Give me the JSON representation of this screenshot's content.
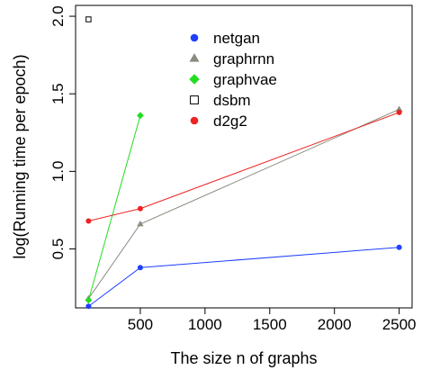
{
  "chart_data": {
    "type": "line",
    "title": "",
    "xlabel": "The size n of graphs",
    "ylabel": "log(Running time per epoch)",
    "xlim": [
      0,
      2600
    ],
    "ylim": [
      0.12,
      2.07
    ],
    "x_ticks": [
      500,
      1000,
      1500,
      2000,
      2500
    ],
    "x_tick_labels": [
      "500",
      "1000",
      "1500",
      "2000",
      "2500"
    ],
    "y_ticks": [
      0.5,
      1.0,
      1.5,
      2.0
    ],
    "y_tick_labels": [
      "0.5",
      "1.0",
      "1.5",
      "2.0"
    ],
    "grid": false,
    "legend_position": "top-center",
    "series": [
      {
        "name": "netgan",
        "color": "#1f3fff",
        "marker": "circle",
        "x": [
          100,
          500,
          2500
        ],
        "y": [
          0.13,
          0.38,
          0.51
        ]
      },
      {
        "name": "graphrnn",
        "color": "#8b8b80",
        "marker": "triangle",
        "x": [
          100,
          500,
          2500
        ],
        "y": [
          0.18,
          0.66,
          1.4
        ]
      },
      {
        "name": "graphvae",
        "color": "#22dd22",
        "marker": "diamond",
        "x": [
          100,
          500
        ],
        "y": [
          0.17,
          1.36
        ]
      },
      {
        "name": "dsbm",
        "color": "#000000",
        "marker": "open-square",
        "x": [
          100
        ],
        "y": [
          1.98
        ]
      },
      {
        "name": "d2g2",
        "color": "#ee2222",
        "marker": "circle",
        "x": [
          100,
          500,
          2500
        ],
        "y": [
          0.68,
          0.76,
          1.38
        ]
      }
    ]
  }
}
